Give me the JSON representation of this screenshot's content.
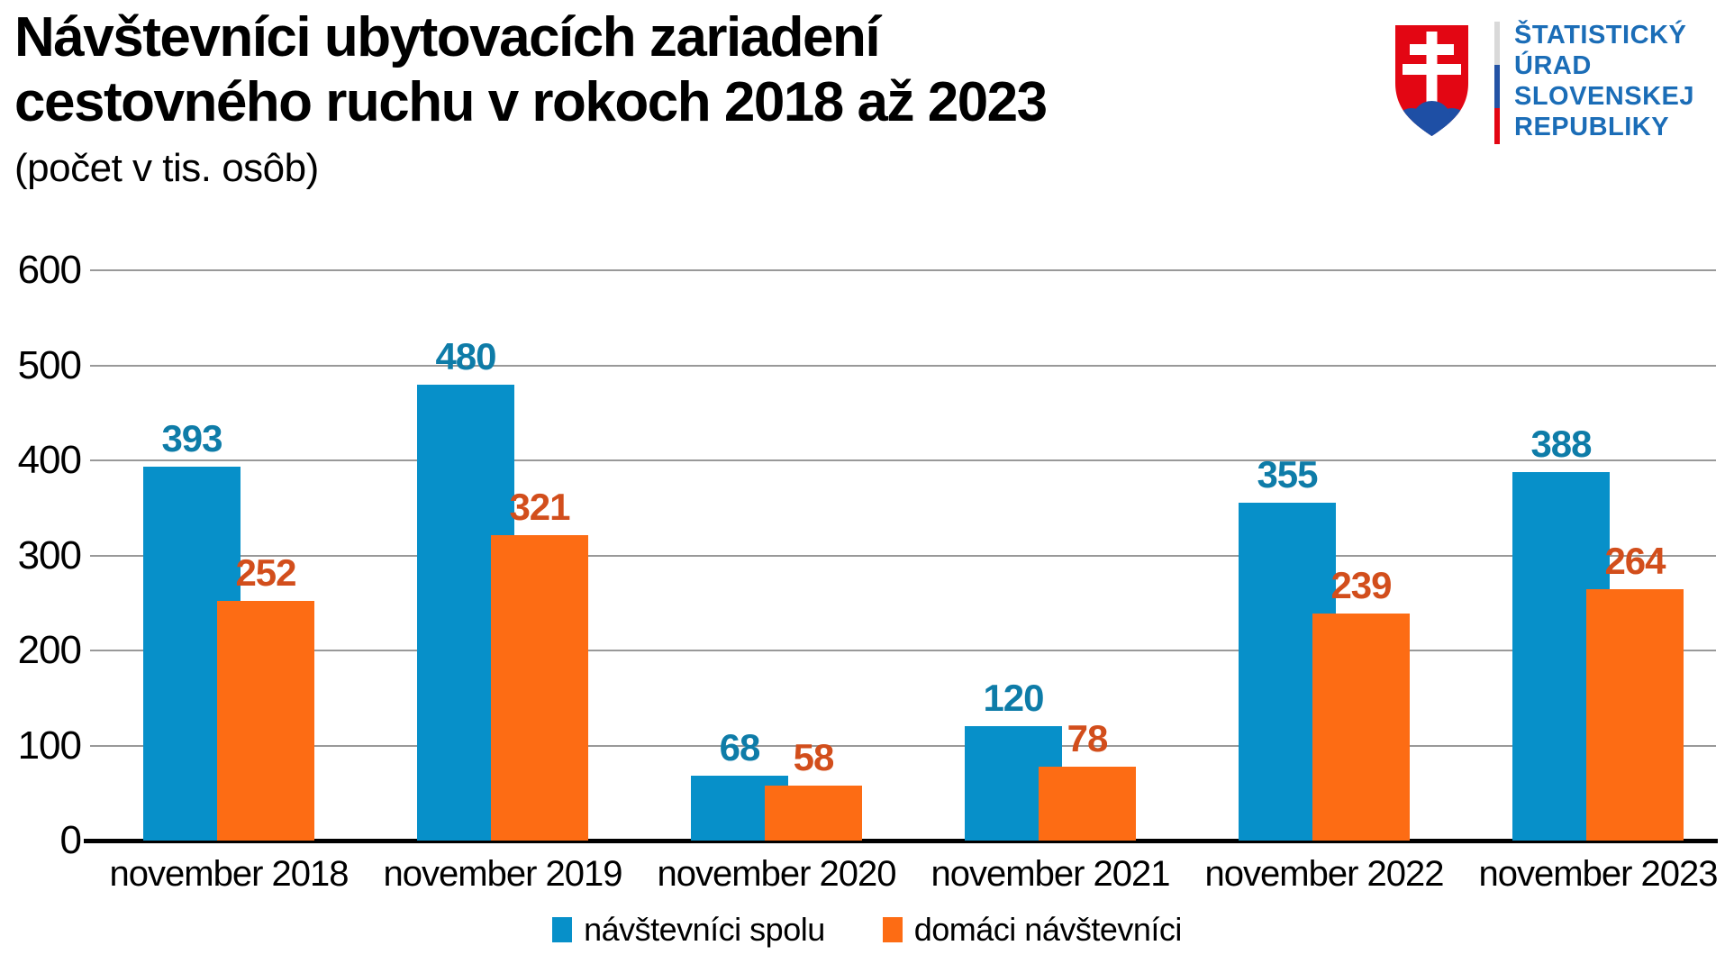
{
  "header": {
    "title_line1": "Návštevníci ubytovacích zariadení",
    "title_line2": "cestovného ruchu v rokoch 2018 až 2023",
    "subtitle": "(počet v tis. osôb)"
  },
  "logo": {
    "lines": [
      "ŠTATISTICKÝ",
      "ÚRAD",
      "SLOVENSKEJ",
      "REPUBLIKY"
    ],
    "text_color": "#1B6DB7",
    "shield_red": "#E30613",
    "hill_blue": "#1E4FA5",
    "cross_white": "#FFFFFF",
    "divider_colors": [
      "#D9D9D9",
      "#2453A5",
      "#E30613"
    ]
  },
  "chart_data": {
    "type": "bar",
    "title": "Návštevníci ubytovacích zariadení cestovného ruchu v rokoch 2018 až 2023",
    "subtitle": "(počet v tis. osôb)",
    "unit": "tis. osôb",
    "categories": [
      "november 2018",
      "november 2019",
      "november 2020",
      "november 2021",
      "november 2022",
      "november 2023"
    ],
    "series": [
      {
        "name": "návštevníci spolu",
        "color": "#0790C9",
        "label_color": "#0E7CA8",
        "values": [
          393,
          480,
          68,
          120,
          355,
          388
        ]
      },
      {
        "name": "domáci návštevníci",
        "color": "#FD6C14",
        "label_color": "#D24E1C",
        "values": [
          252,
          321,
          58,
          78,
          239,
          264
        ]
      }
    ],
    "ylim": [
      0,
      600
    ],
    "ytick_step": 100,
    "grid": true,
    "value_labels": true,
    "legend_position": "bottom",
    "axis_color": "#000000",
    "grid_color": "#999999"
  }
}
